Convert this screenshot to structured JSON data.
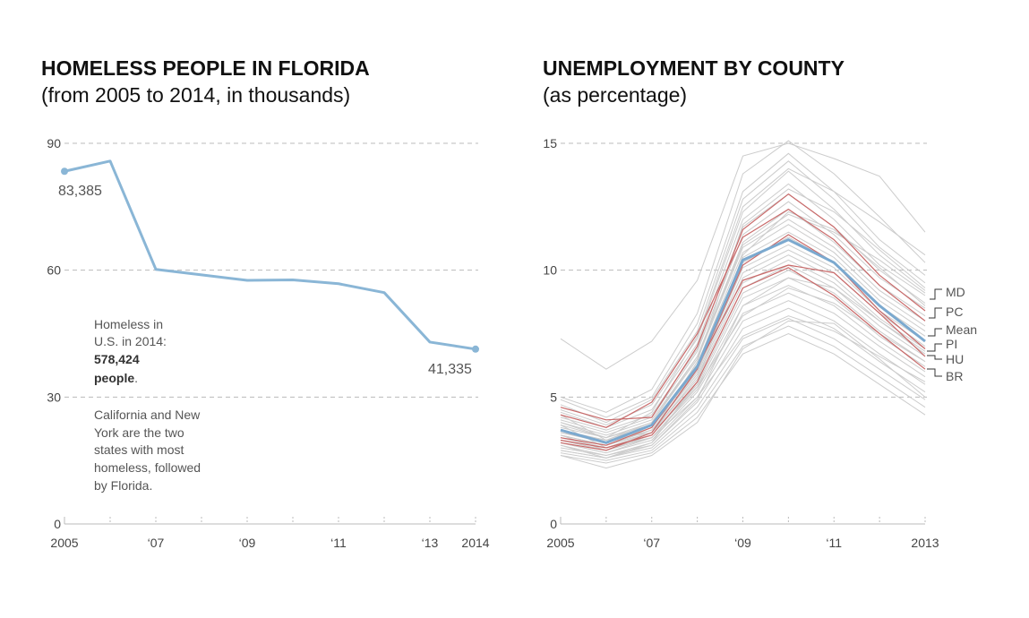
{
  "chart_data": [
    {
      "type": "line",
      "title": "HOMELESS PEOPLE IN FLORIDA",
      "subtitle": "(from 2005 to 2014, in thousands)",
      "x": [
        2005,
        2006,
        2007,
        2008,
        2009,
        2010,
        2011,
        2012,
        2013,
        2014
      ],
      "xticks": [
        2005,
        2007,
        2009,
        2011,
        2013,
        2014
      ],
      "xtick_labels": [
        "2005",
        "‘07",
        "‘09",
        "‘11",
        "‘13",
        "2014"
      ],
      "ylim": [
        0,
        90
      ],
      "yticks": [
        0,
        30,
        60,
        90
      ],
      "grid": true,
      "color": "#8ab6d6",
      "series": [
        {
          "values": [
            83.385,
            85.8,
            60.2,
            58.9,
            57.6,
            57.7,
            56.8,
            54.7,
            43.0,
            41.335
          ]
        }
      ],
      "endpoint_labels": {
        "start": "83,385",
        "end": "41,335"
      },
      "annotation": {
        "line1": "Homeless in",
        "line2": "U.S. in 2014:",
        "bold_number": "578,424",
        "bold_word": "people",
        "period": ".",
        "paragraph": [
          "California and New",
          "York are the two",
          "states with most",
          "homeless, followed",
          "by Florida."
        ]
      }
    },
    {
      "type": "line",
      "title": "UNEMPLOYMENT BY COUNTY",
      "subtitle": "(as percentage)",
      "x": [
        2005,
        2006,
        2007,
        2008,
        2009,
        2010,
        2011,
        2012,
        2013
      ],
      "xticks": [
        2005,
        2007,
        2009,
        2011,
        2013
      ],
      "xtick_labels": [
        "2005",
        "‘07",
        "‘09",
        "‘11",
        "2013"
      ],
      "ylim": [
        0,
        15
      ],
      "yticks": [
        0,
        5,
        10,
        15
      ],
      "grid": true,
      "colors": {
        "county": "#cccccc",
        "highlight": "#c96a6a",
        "mean": "#7ba9cf"
      },
      "series": [
        {
          "name": "Mean",
          "values": [
            3.7,
            3.2,
            3.9,
            6.2,
            10.4,
            11.2,
            10.3,
            8.6,
            7.2
          ]
        },
        {
          "name": "MD",
          "values": [
            4.6,
            4.1,
            4.2,
            7.0,
            11.6,
            13.0,
            11.7,
            9.8,
            8.4
          ]
        },
        {
          "name": "PC",
          "values": [
            4.3,
            3.8,
            4.8,
            7.5,
            11.3,
            12.4,
            11.2,
            9.4,
            8.0
          ]
        },
        {
          "name": "PI",
          "values": [
            3.2,
            2.9,
            3.6,
            6.1,
            10.2,
            11.4,
            10.3,
            8.4,
            6.9
          ]
        },
        {
          "name": "HU",
          "values": [
            3.4,
            3.1,
            3.8,
            6.2,
            9.6,
            10.2,
            9.9,
            8.3,
            6.6
          ]
        },
        {
          "name": "BR",
          "values": [
            3.3,
            3.0,
            3.5,
            5.6,
            9.3,
            10.1,
            9.0,
            7.5,
            6.1
          ]
        }
      ],
      "counties": [
        [
          7.3,
          6.1,
          7.2,
          9.6,
          14.5,
          15.0,
          14.4,
          13.7,
          11.5
        ],
        [
          5.0,
          4.4,
          5.3,
          8.3,
          13.8,
          15.1,
          13.8,
          12.1,
          10.3
        ],
        [
          4.9,
          4.2,
          5.0,
          7.9,
          13.1,
          14.6,
          13.1,
          11.2,
          9.8
        ],
        [
          4.7,
          4.0,
          4.9,
          7.6,
          12.8,
          14.3,
          12.8,
          10.9,
          9.5
        ],
        [
          4.5,
          3.9,
          4.7,
          7.3,
          12.3,
          13.9,
          12.4,
          10.6,
          9.2
        ],
        [
          4.4,
          3.8,
          4.5,
          7.1,
          12.0,
          13.4,
          12.0,
          10.2,
          9.0
        ],
        [
          4.2,
          3.7,
          4.3,
          6.9,
          11.7,
          13.0,
          11.7,
          10.0,
          8.7
        ],
        [
          4.1,
          3.6,
          4.2,
          6.8,
          11.4,
          12.7,
          11.4,
          9.7,
          8.5
        ],
        [
          4.0,
          3.5,
          4.1,
          6.6,
          11.1,
          12.4,
          11.1,
          9.4,
          8.2
        ],
        [
          3.9,
          3.4,
          4.0,
          6.5,
          10.9,
          12.0,
          10.9,
          9.2,
          8.0
        ],
        [
          3.8,
          3.4,
          3.9,
          6.3,
          10.7,
          11.8,
          10.7,
          9.0,
          7.8
        ],
        [
          3.7,
          3.3,
          3.9,
          6.2,
          10.5,
          11.5,
          10.5,
          8.8,
          7.6
        ],
        [
          3.7,
          3.2,
          3.8,
          6.1,
          10.3,
          11.3,
          10.3,
          8.6,
          7.4
        ],
        [
          3.6,
          3.2,
          3.7,
          6.0,
          10.1,
          11.0,
          10.1,
          8.4,
          7.2
        ],
        [
          3.5,
          3.1,
          3.7,
          5.9,
          9.9,
          10.8,
          9.9,
          8.3,
          7.0
        ],
        [
          3.5,
          3.1,
          3.6,
          5.8,
          9.7,
          10.6,
          9.7,
          8.1,
          6.9
        ],
        [
          3.4,
          3.0,
          3.6,
          5.7,
          9.5,
          10.4,
          9.5,
          8.0,
          6.8
        ],
        [
          3.4,
          3.0,
          3.5,
          5.6,
          9.3,
          10.2,
          9.3,
          7.8,
          6.6
        ],
        [
          3.3,
          2.9,
          3.5,
          5.5,
          9.1,
          10.0,
          9.1,
          7.6,
          6.4
        ],
        [
          3.3,
          2.9,
          3.4,
          5.4,
          8.9,
          9.7,
          8.9,
          7.4,
          6.2
        ],
        [
          3.2,
          2.8,
          3.4,
          5.3,
          8.6,
          9.4,
          8.6,
          7.2,
          6.0
        ],
        [
          3.2,
          2.8,
          3.3,
          5.2,
          8.3,
          9.1,
          8.3,
          7.0,
          5.8
        ],
        [
          3.1,
          2.7,
          3.2,
          5.0,
          8.0,
          8.8,
          8.0,
          6.7,
          5.5
        ],
        [
          3.0,
          2.7,
          3.1,
          4.8,
          7.7,
          8.5,
          7.7,
          6.4,
          5.2
        ],
        [
          2.9,
          2.6,
          3.0,
          4.6,
          7.3,
          8.1,
          7.3,
          6.1,
          4.9
        ],
        [
          2.8,
          2.5,
          2.9,
          4.4,
          7.0,
          7.8,
          7.0,
          5.8,
          4.6
        ],
        [
          2.7,
          2.4,
          2.8,
          4.2,
          6.7,
          7.5,
          6.7,
          5.5,
          4.3
        ],
        [
          2.7,
          2.2,
          2.7,
          4.0,
          6.9,
          8.0,
          7.9,
          6.5,
          5.0
        ],
        [
          3.6,
          3.3,
          4.0,
          6.6,
          11.0,
          12.2,
          11.5,
          10.4,
          9.1
        ],
        [
          4.0,
          3.4,
          4.4,
          7.4,
          12.5,
          14.0,
          13.1,
          11.9,
          10.6
        ],
        [
          3.9,
          3.0,
          3.4,
          5.0,
          7.4,
          8.2,
          7.6,
          6.6,
          5.6
        ],
        [
          4.3,
          3.3,
          3.6,
          5.4,
          8.2,
          9.3,
          8.7,
          7.5,
          6.4
        ],
        [
          3.1,
          2.6,
          3.2,
          5.6,
          10.6,
          12.3,
          11.6,
          10.1,
          8.6
        ],
        [
          3.5,
          2.9,
          3.6,
          6.4,
          11.8,
          13.2,
          12.3,
          10.8,
          9.3
        ],
        [
          2.9,
          2.6,
          3.1,
          4.9,
          8.6,
          9.7,
          9.3,
          8.0,
          6.7
        ]
      ],
      "right_labels": [
        "MD",
        "PC",
        "Mean",
        "PI",
        "HU",
        "BR"
      ]
    }
  ]
}
